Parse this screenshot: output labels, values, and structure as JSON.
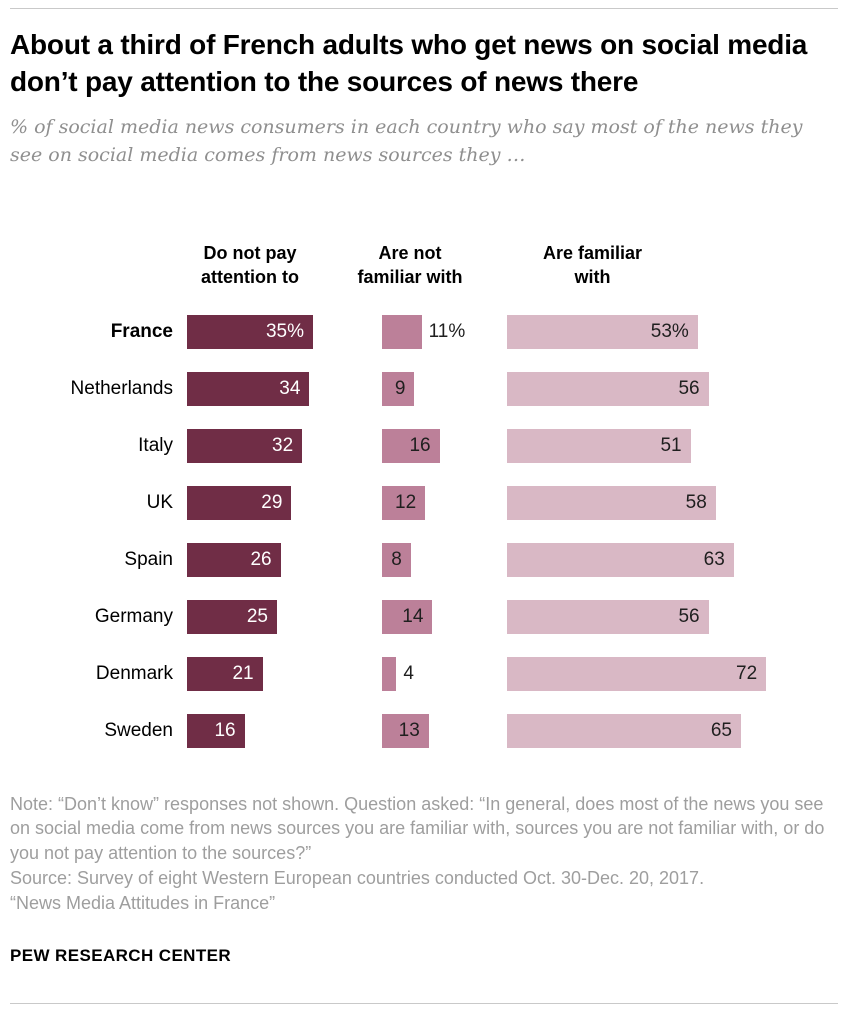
{
  "header": {
    "title": "About a third of French adults who get news on social media don’t pay attention to the sources of news there",
    "subtitle": "% of social media news consumers in each country who say most of the news they see on social media comes from news sources they …"
  },
  "chart_data": {
    "type": "bar",
    "orientation": "horizontal",
    "emphasized_category": "France",
    "categories": [
      "France",
      "Netherlands",
      "Italy",
      "UK",
      "Spain",
      "Germany",
      "Denmark",
      "Sweden"
    ],
    "series": [
      {
        "name": "Do not pay attention to",
        "name_lines": [
          "Do not pay",
          "attention to"
        ],
        "color": "#702D46",
        "values": [
          35,
          34,
          32,
          29,
          26,
          25,
          21,
          16
        ],
        "labels": [
          "35%",
          "34",
          "32",
          "29",
          "26",
          "25",
          "21",
          "16"
        ]
      },
      {
        "name": "Are not familiar with",
        "name_lines": [
          "Are not",
          "familiar with"
        ],
        "color": "#BC8099",
        "values": [
          11,
          9,
          16,
          12,
          8,
          14,
          4,
          13
        ],
        "labels": [
          "11%",
          "9",
          "16",
          "12",
          "8",
          "14",
          "4",
          "13"
        ]
      },
      {
        "name": "Are familiar with",
        "name_lines": [
          "Are familiar",
          "with"
        ],
        "color": "#D9B8C5",
        "values": [
          53,
          56,
          51,
          58,
          63,
          56,
          72,
          65
        ],
        "labels": [
          "53%",
          "56",
          "51",
          "58",
          "63",
          "56",
          "72",
          "65"
        ]
      }
    ],
    "value_unit": "%",
    "xlim": [
      0,
      100
    ],
    "grid": false,
    "legend_position": "column-headers"
  },
  "notes": {
    "note": "Note: “Don’t know” responses not shown. Question asked: “In general, does most of the news you see on social media come from news sources you are familiar with, sources you are not familiar with, or do you not pay attention to the sources?”",
    "source": "Source: Survey of eight Western European countries conducted Oct. 30-Dec. 20, 2017.",
    "report": "“News Media Attitudes in France”"
  },
  "footer": {
    "brand": "PEW RESEARCH CENTER"
  }
}
